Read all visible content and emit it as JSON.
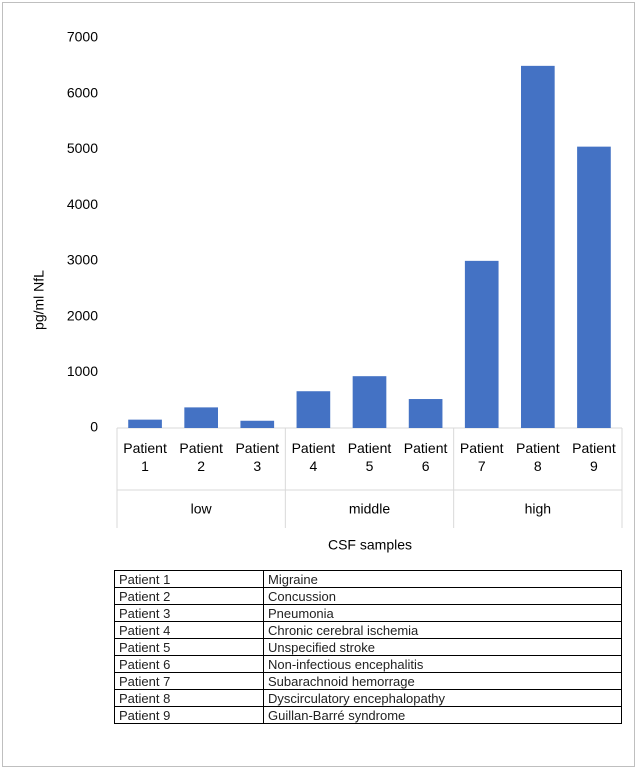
{
  "chart_data": {
    "type": "bar",
    "y_label": "pg/ml NfL",
    "x_label": "CSF samples",
    "categories": [
      "Patient 1",
      "Patient 2",
      "Patient 3",
      "Patient 4",
      "Patient 5",
      "Patient 6",
      "Patient 7",
      "Patient 8",
      "Patient 9"
    ],
    "category_groups": [
      "low",
      "low",
      "low",
      "middle",
      "middle",
      "middle",
      "high",
      "high",
      "high"
    ],
    "values": [
      150,
      370,
      130,
      660,
      930,
      520,
      3000,
      6500,
      5050
    ],
    "color": "#4472c4",
    "ylim": [
      0,
      7000
    ],
    "yticks": [
      0,
      1000,
      2000,
      3000,
      4000,
      5000,
      6000,
      7000
    ],
    "grid": false
  },
  "table": {
    "rows": [
      [
        "Patient 1",
        "Migraine"
      ],
      [
        "Patient 2",
        "Concussion"
      ],
      [
        "Patient 3",
        "Pneumonia"
      ],
      [
        "Patient 4",
        "Chronic cerebral ischemia"
      ],
      [
        "Patient 5",
        "Unspecified stroke"
      ],
      [
        "Patient 6",
        "Non-infectious encephalitis"
      ],
      [
        "Patient 7",
        "Subarachnoid hemorrage"
      ],
      [
        "Patient 8",
        "Dyscirculatory encephalopathy"
      ],
      [
        "Patient 9",
        "Guillan-Barré syndrome"
      ]
    ]
  }
}
